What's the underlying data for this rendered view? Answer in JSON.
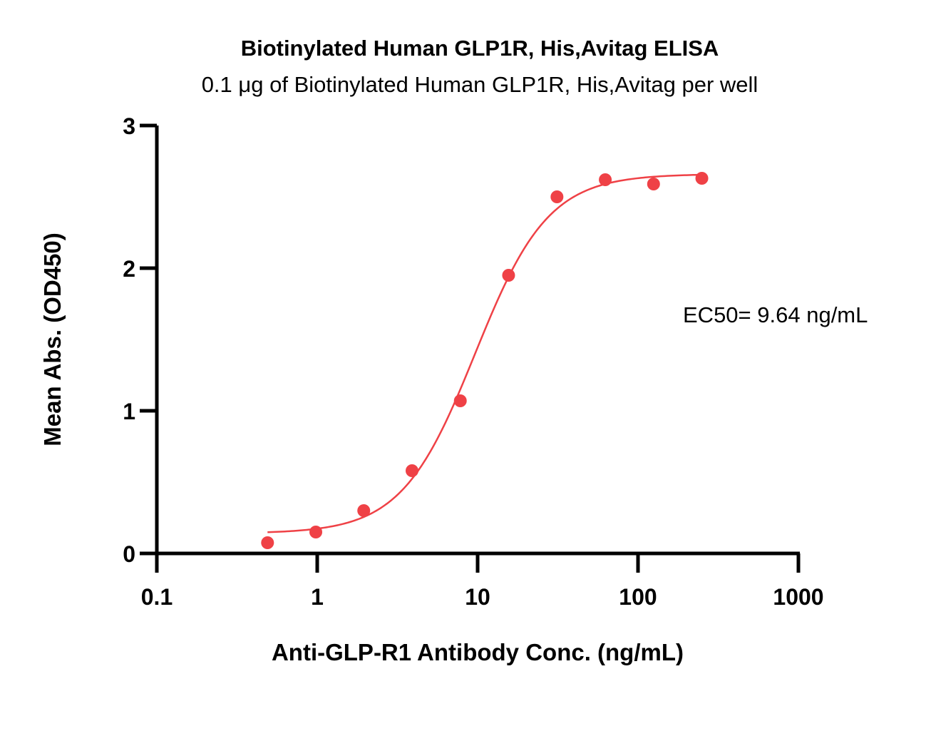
{
  "chart_data": {
    "type": "scatter",
    "title": "Biotinylated Human GLP1R, His,Avitag ELISA",
    "subtitle": "0.1 μg of Biotinylated Human GLP1R, His,Avitag per well",
    "xlabel": "Anti-GLP-R1 Antibody Conc. (ng/mL)",
    "ylabel": "Mean Abs. (OD450)",
    "xscale": "log",
    "xlim": [
      0.1,
      1000
    ],
    "ylim": [
      0,
      3
    ],
    "x_ticks": [
      "0.1",
      "1",
      "10",
      "100",
      "1000"
    ],
    "y_ticks": [
      "0",
      "1",
      "2",
      "3"
    ],
    "grid": false,
    "series": [
      {
        "x": [
          0.49,
          0.98,
          1.95,
          3.9,
          7.8,
          15.6,
          31.25,
          62.5,
          125,
          250
        ],
        "y": [
          0.075,
          0.15,
          0.3,
          0.58,
          1.07,
          1.95,
          2.5,
          2.62,
          2.59,
          2.63
        ],
        "color": "#ef4146",
        "marker": "circle"
      }
    ],
    "fit_curve": {
      "model": "4PL",
      "bottom": 0.14,
      "top": 2.66,
      "ec50": 9.64,
      "hill": 1.9,
      "x_range": [
        0.49,
        250
      ],
      "color": "#ef4146"
    },
    "annotations": [
      {
        "text": "EC50= 9.64 ng/mL",
        "position": "right"
      }
    ]
  }
}
